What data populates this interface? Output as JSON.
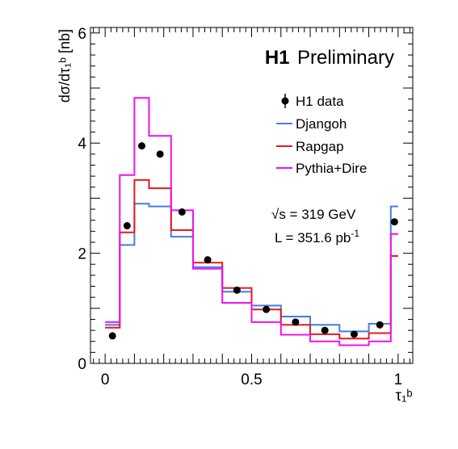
{
  "chart_data": {
    "type": "line",
    "brand": "H1",
    "title": "Preliminary",
    "ylabel": "dσ/dτ₁ᵇ [nb]",
    "xlabel": "τ₁ᵇ",
    "xlim": [
      -0.05,
      1.05
    ],
    "ylim": [
      0,
      6.1
    ],
    "x_ticks": [
      0,
      0.5,
      1
    ],
    "x_tick_labels": [
      "0",
      "0.5",
      "1"
    ],
    "y_ticks": [
      0,
      2,
      4,
      6
    ],
    "y_tick_labels": [
      "0",
      "2",
      "4",
      "6"
    ],
    "bin_edges": [
      0,
      0.05,
      0.1,
      0.15,
      0.225,
      0.3,
      0.4,
      0.5,
      0.6,
      0.7,
      0.8,
      0.9,
      0.975,
      1.0
    ],
    "series": [
      {
        "name": "H1 data",
        "style": "points",
        "color": "#000000",
        "x": [
          0.025,
          0.075,
          0.125,
          0.1875,
          0.2625,
          0.35,
          0.45,
          0.55,
          0.65,
          0.75,
          0.85,
          0.9375,
          0.9875
        ],
        "values": [
          0.5,
          2.5,
          3.95,
          3.8,
          2.75,
          1.88,
          1.33,
          0.98,
          0.75,
          0.6,
          0.53,
          0.7,
          2.57
        ]
      },
      {
        "name": "Djangoh",
        "style": "step",
        "color": "#3f7fe8",
        "values": [
          0.7,
          2.15,
          2.9,
          2.85,
          2.3,
          1.75,
          1.3,
          1.05,
          0.85,
          0.7,
          0.58,
          0.72,
          2.85
        ]
      },
      {
        "name": "Rapgap",
        "style": "step",
        "color": "#e8191c",
        "values": [
          0.65,
          2.38,
          3.33,
          3.18,
          2.42,
          1.83,
          1.37,
          0.98,
          0.7,
          0.53,
          0.45,
          0.55,
          1.95
        ]
      },
      {
        "name": "Pythia+Dire",
        "style": "step",
        "color": "#ee11ee",
        "values": [
          0.75,
          3.42,
          4.82,
          4.13,
          2.78,
          1.72,
          1.1,
          0.75,
          0.52,
          0.4,
          0.33,
          0.4,
          2.35
        ]
      }
    ],
    "annotations": [
      {
        "label": "√s = 319 GeV"
      },
      {
        "label": "L = 351.6 pb",
        "sup": "-1"
      }
    ],
    "legend_position": "top-right",
    "grid": false
  }
}
